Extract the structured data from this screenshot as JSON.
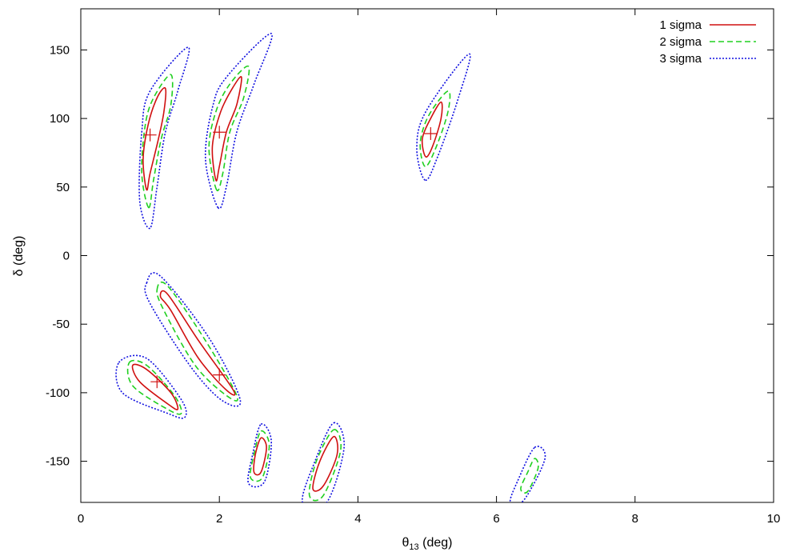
{
  "chart_data": {
    "type": "contour",
    "xlabel": "θ",
    "xlabel_sub": "13",
    "xlabel_unit": " (deg)",
    "ylabel": "δ (deg)",
    "xlim": [
      0,
      10
    ],
    "ylim": [
      -180,
      180
    ],
    "xticks": [
      0,
      2,
      4,
      6,
      8,
      10
    ],
    "yticks": [
      -150,
      -100,
      -50,
      0,
      50,
      100,
      150
    ],
    "grid": false,
    "legend_position": "top-right",
    "series": [
      {
        "name": "1 sigma",
        "color": "#d01010",
        "dash": "solid"
      },
      {
        "name": "2 sigma",
        "color": "#20d020",
        "dash": "dashed"
      },
      {
        "name": "3 sigma",
        "color": "#1010e0",
        "dash": "dotted"
      }
    ],
    "best_fit_points": [
      {
        "x": 1.0,
        "y": 88
      },
      {
        "x": 2.0,
        "y": 90
      },
      {
        "x": 5.05,
        "y": 89
      },
      {
        "x": 1.1,
        "y": -92
      },
      {
        "x": 2.0,
        "y": -87
      }
    ],
    "regions": [
      {
        "center": [
          1.05,
          85
        ],
        "levels": [
          [
            [
              0.95,
              48
            ],
            [
              0.9,
              70
            ],
            [
              0.97,
              95
            ],
            [
              1.1,
              115
            ],
            [
              1.22,
              122
            ],
            [
              1.2,
              105
            ],
            [
              1.12,
              85
            ],
            [
              1.0,
              60
            ]
          ],
          [
            [
              0.98,
              35
            ],
            [
              0.88,
              60
            ],
            [
              0.93,
              95
            ],
            [
              1.05,
              115
            ],
            [
              1.3,
              132
            ],
            [
              1.3,
              110
            ],
            [
              1.16,
              85
            ],
            [
              1.05,
              55
            ]
          ],
          [
            [
              1.0,
              20
            ],
            [
              0.85,
              40
            ],
            [
              0.88,
              90
            ],
            [
              1.0,
              120
            ],
            [
              1.55,
              152
            ],
            [
              1.4,
              120
            ],
            [
              1.22,
              90
            ],
            [
              1.1,
              50
            ]
          ]
        ]
      },
      {
        "center": [
          2.1,
          95
        ],
        "levels": [
          [
            [
              1.95,
              55
            ],
            [
              1.9,
              80
            ],
            [
              2.02,
              105
            ],
            [
              2.2,
              123
            ],
            [
              2.32,
              130
            ],
            [
              2.25,
              110
            ],
            [
              2.1,
              90
            ],
            [
              2.0,
              65
            ]
          ],
          [
            [
              1.96,
              48
            ],
            [
              1.85,
              78
            ],
            [
              1.95,
              105
            ],
            [
              2.15,
              125
            ],
            [
              2.42,
              138
            ],
            [
              2.35,
              115
            ],
            [
              2.15,
              90
            ],
            [
              2.05,
              60
            ]
          ],
          [
            [
              1.98,
              35
            ],
            [
              1.8,
              70
            ],
            [
              1.9,
              108
            ],
            [
              2.1,
              130
            ],
            [
              2.75,
              162
            ],
            [
              2.5,
              125
            ],
            [
              2.25,
              90
            ],
            [
              2.1,
              50
            ]
          ]
        ]
      },
      {
        "center": [
          5.05,
          92
        ],
        "levels": [
          [
            [
              4.98,
              72
            ],
            [
              4.93,
              85
            ],
            [
              5.05,
              100
            ],
            [
              5.2,
              112
            ],
            [
              5.2,
              100
            ],
            [
              5.08,
              80
            ]
          ],
          [
            [
              4.97,
              65
            ],
            [
              4.9,
              82
            ],
            [
              5.02,
              102
            ],
            [
              5.3,
              120
            ],
            [
              5.3,
              105
            ],
            [
              5.12,
              78
            ]
          ],
          [
            [
              4.97,
              55
            ],
            [
              4.85,
              78
            ],
            [
              4.98,
              105
            ],
            [
              5.6,
              147
            ],
            [
              5.45,
              115
            ],
            [
              5.15,
              72
            ]
          ]
        ]
      },
      {
        "center": [
          1.6,
          -60
        ],
        "levels": [
          [
            [
              1.15,
              -30
            ],
            [
              1.25,
              -28
            ],
            [
              1.7,
              -62
            ],
            [
              2.2,
              -98
            ],
            [
              2.1,
              -98
            ],
            [
              1.7,
              -75
            ],
            [
              1.3,
              -40
            ]
          ],
          [
            [
              1.1,
              -25
            ],
            [
              1.25,
              -22
            ],
            [
              1.8,
              -62
            ],
            [
              2.25,
              -102
            ],
            [
              2.1,
              -102
            ],
            [
              1.65,
              -80
            ],
            [
              1.2,
              -40
            ]
          ],
          [
            [
              0.95,
              -20
            ],
            [
              1.15,
              -15
            ],
            [
              1.85,
              -60
            ],
            [
              2.3,
              -105
            ],
            [
              2.05,
              -106
            ],
            [
              1.6,
              -82
            ],
            [
              1.0,
              -35
            ]
          ]
        ]
      },
      {
        "center": [
          1.1,
          -97
        ],
        "levels": [
          [
            [
              0.75,
              -80
            ],
            [
              0.95,
              -83
            ],
            [
              1.3,
              -100
            ],
            [
              1.4,
              -112
            ],
            [
              1.25,
              -108
            ],
            [
              0.85,
              -92
            ]
          ],
          [
            [
              0.7,
              -78
            ],
            [
              0.95,
              -80
            ],
            [
              1.35,
              -102
            ],
            [
              1.45,
              -115
            ],
            [
              1.25,
              -112
            ],
            [
              0.75,
              -95
            ]
          ],
          [
            [
              0.55,
              -78
            ],
            [
              0.95,
              -75
            ],
            [
              1.45,
              -105
            ],
            [
              1.5,
              -118
            ],
            [
              1.25,
              -115
            ],
            [
              0.6,
              -100
            ]
          ]
        ]
      },
      {
        "center": [
          2.58,
          -145
        ],
        "levels": [
          [
            [
              2.6,
              -133
            ],
            [
              2.68,
              -140
            ],
            [
              2.6,
              -158
            ],
            [
              2.5,
              -158
            ],
            [
              2.52,
              -145
            ]
          ],
          [
            [
              2.6,
              -128
            ],
            [
              2.72,
              -138
            ],
            [
              2.62,
              -162
            ],
            [
              2.45,
              -162
            ],
            [
              2.5,
              -145
            ]
          ],
          [
            [
              2.6,
              -123
            ],
            [
              2.75,
              -135
            ],
            [
              2.65,
              -165
            ],
            [
              2.42,
              -166
            ],
            [
              2.48,
              -145
            ]
          ]
        ]
      },
      {
        "center": [
          3.55,
          -152
        ],
        "levels": [
          [
            [
              3.65,
              -132
            ],
            [
              3.7,
              -145
            ],
            [
              3.5,
              -168
            ],
            [
              3.35,
              -170
            ],
            [
              3.45,
              -150
            ]
          ],
          [
            [
              3.65,
              -127
            ],
            [
              3.75,
              -142
            ],
            [
              3.5,
              -175
            ],
            [
              3.3,
              -175
            ],
            [
              3.4,
              -150
            ]
          ],
          [
            [
              3.65,
              -122
            ],
            [
              3.8,
              -140
            ],
            [
              3.55,
              -180
            ],
            [
              3.2,
              -180
            ],
            [
              3.38,
              -150
            ]
          ]
        ]
      },
      {
        "center": [
          6.45,
          -162
        ],
        "levels": [
          null,
          [
            [
              6.55,
              -148
            ],
            [
              6.6,
              -155
            ],
            [
              6.45,
              -172
            ],
            [
              6.35,
              -170
            ],
            [
              6.45,
              -158
            ]
          ],
          [
            [
              6.55,
              -140
            ],
            [
              6.7,
              -148
            ],
            [
              6.4,
              -178
            ],
            [
              6.2,
              -180
            ],
            [
              6.3,
              -165
            ]
          ]
        ]
      }
    ]
  }
}
